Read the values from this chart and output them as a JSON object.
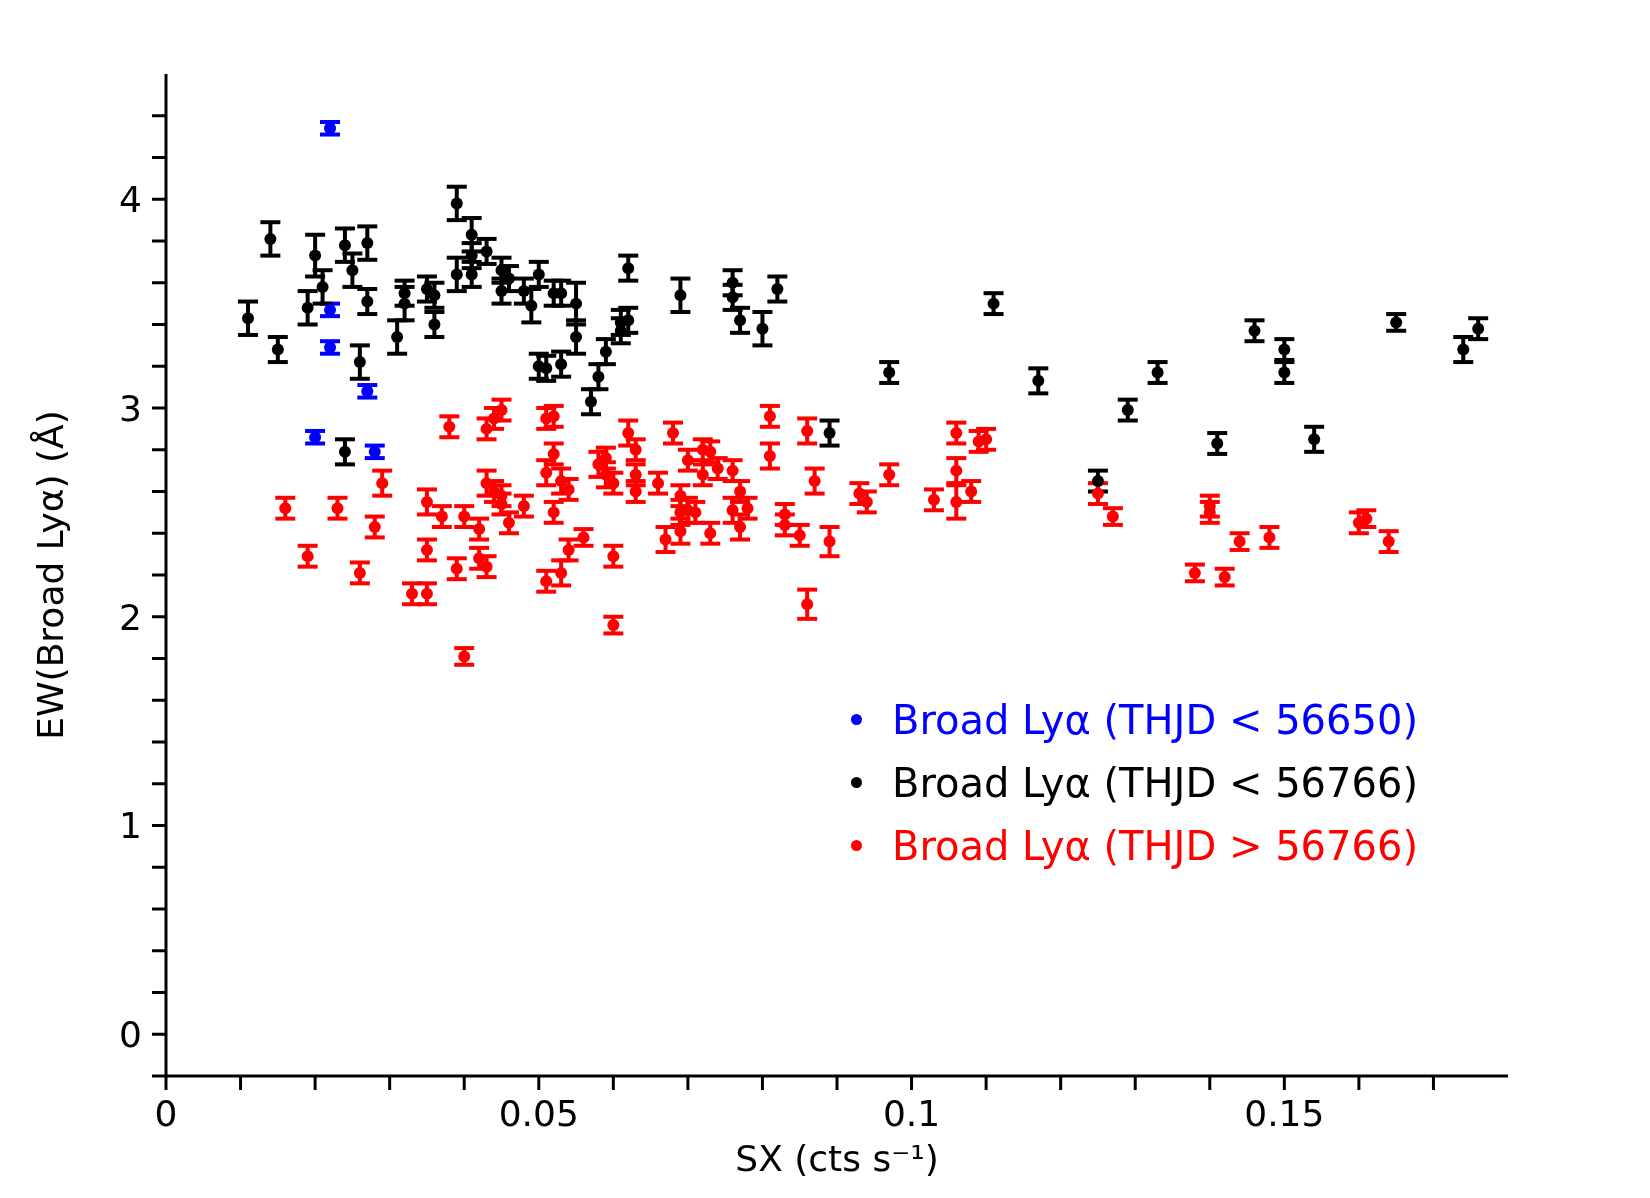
{
  "chart_data": {
    "type": "scatter",
    "xlabel": "SX (cts s⁻¹)",
    "ylabel": "EW(Broad Lyα) (Å)",
    "xlim": [
      0,
      0.18
    ],
    "ylim": [
      -0.2,
      4.6
    ],
    "xticks": [
      0,
      {
        "value": 0.01,
        "label": null
      },
      {
        "value": 0.02,
        "label": null
      },
      {
        "value": 0.03,
        "label": null
      },
      {
        "value": 0.04,
        "label": null
      },
      {
        "value": 0.05,
        "label": "0.05"
      },
      {
        "value": 0.06,
        "label": null
      },
      {
        "value": 0.07,
        "label": null
      },
      {
        "value": 0.08,
        "label": null
      },
      {
        "value": 0.09,
        "label": null
      },
      {
        "value": 0.1,
        "label": "0.1"
      },
      {
        "value": 0.11,
        "label": null
      },
      {
        "value": 0.12,
        "label": null
      },
      {
        "value": 0.13,
        "label": null
      },
      {
        "value": 0.14,
        "label": null
      },
      {
        "value": 0.15,
        "label": "0.15"
      },
      {
        "value": 0.16,
        "label": null
      },
      {
        "value": 0.17,
        "label": null
      }
    ],
    "yticks": [
      {
        "value": -0.2,
        "label": null
      },
      0,
      {
        "value": 0.2,
        "label": null
      },
      {
        "value": 0.4,
        "label": null
      },
      {
        "value": 0.6,
        "label": null
      },
      {
        "value": 0.8,
        "label": null
      },
      1,
      {
        "value": 1.2,
        "label": null
      },
      {
        "value": 1.4,
        "label": null
      },
      {
        "value": 1.6,
        "label": null
      },
      {
        "value": 1.8,
        "label": null
      },
      2,
      {
        "value": 2.2,
        "label": null
      },
      {
        "value": 2.4,
        "label": null
      },
      {
        "value": 2.6,
        "label": null
      },
      {
        "value": 2.8,
        "label": null
      },
      3,
      {
        "value": 3.2,
        "label": null
      },
      {
        "value": 3.4,
        "label": null
      },
      {
        "value": 3.6,
        "label": null
      },
      {
        "value": 3.8,
        "label": null
      },
      4,
      {
        "value": 4.2,
        "label": null
      },
      {
        "value": 4.4,
        "label": null
      }
    ],
    "marker": "circle",
    "legend": "bottom right",
    "series": [
      {
        "name": "Broad Lyα (THJD < 56650)",
        "color": "#0000ff",
        "x": [
          0.022,
          0.022,
          0.022,
          0.027,
          0.02,
          0.028
        ],
        "values": [
          4.34,
          3.47,
          3.29,
          3.08,
          2.86,
          2.79
        ],
        "errors": [
          0.03,
          0.03,
          0.03,
          0.03,
          0.03,
          0.03
        ]
      },
      {
        "name": "Broad Lyα (THJD < 56766)",
        "color": "#000000",
        "x": [
          0.011,
          0.014,
          0.015,
          0.019,
          0.02,
          0.021,
          0.024,
          0.025,
          0.026,
          0.027,
          0.027,
          0.024,
          0.031,
          0.032,
          0.032,
          0.035,
          0.036,
          0.036,
          0.039,
          0.039,
          0.041,
          0.041,
          0.041,
          0.043,
          0.045,
          0.045,
          0.046,
          0.048,
          0.049,
          0.05,
          0.05,
          0.051,
          0.052,
          0.053,
          0.053,
          0.055,
          0.055,
          0.057,
          0.058,
          0.059,
          0.061,
          0.061,
          0.062,
          0.062,
          0.069,
          0.076,
          0.076,
          0.077,
          0.08,
          0.082,
          0.089,
          0.097,
          0.111,
          0.117,
          0.125,
          0.129,
          0.133,
          0.141,
          0.146,
          0.15,
          0.15,
          0.154,
          0.165,
          0.174,
          0.176
        ],
        "values": [
          3.43,
          3.81,
          3.28,
          3.48,
          3.73,
          3.58,
          3.78,
          3.66,
          3.22,
          3.79,
          3.51,
          2.79,
          3.34,
          3.5,
          3.55,
          3.57,
          3.54,
          3.4,
          3.64,
          3.98,
          3.83,
          3.73,
          3.64,
          3.75,
          3.66,
          3.56,
          3.62,
          3.56,
          3.49,
          3.64,
          3.2,
          3.19,
          3.55,
          3.55,
          3.21,
          3.5,
          3.34,
          3.03,
          3.15,
          3.27,
          3.37,
          3.41,
          3.42,
          3.67,
          3.54,
          3.6,
          3.53,
          3.42,
          3.38,
          3.57,
          2.88,
          3.17,
          3.5,
          3.13,
          2.65,
          2.99,
          3.17,
          2.83,
          3.37,
          3.28,
          3.17,
          2.85,
          3.41,
          3.28,
          3.38
        ],
        "errors": [
          0.08,
          0.08,
          0.06,
          0.08,
          0.1,
          0.08,
          0.08,
          0.08,
          0.08,
          0.08,
          0.06,
          0.06,
          0.08,
          0.08,
          0.06,
          0.06,
          0.06,
          0.06,
          0.08,
          0.08,
          0.08,
          0.06,
          0.06,
          0.06,
          0.06,
          0.06,
          0.06,
          0.06,
          0.08,
          0.06,
          0.06,
          0.06,
          0.06,
          0.06,
          0.06,
          0.1,
          0.08,
          0.06,
          0.06,
          0.06,
          0.06,
          0.06,
          0.06,
          0.06,
          0.08,
          0.06,
          0.06,
          0.06,
          0.08,
          0.06,
          0.06,
          0.05,
          0.05,
          0.06,
          0.05,
          0.05,
          0.05,
          0.05,
          0.05,
          0.05,
          0.05,
          0.06,
          0.04,
          0.06,
          0.05
        ]
      },
      {
        "name": "Broad Lyα (THJD > 56766)",
        "color": "#ff0000",
        "x": [
          0.016,
          0.019,
          0.023,
          0.026,
          0.028,
          0.029,
          0.033,
          0.035,
          0.035,
          0.035,
          0.037,
          0.038,
          0.039,
          0.04,
          0.04,
          0.042,
          0.042,
          0.043,
          0.043,
          0.044,
          0.045,
          0.043,
          0.044,
          0.045,
          0.045,
          0.046,
          0.048,
          0.051,
          0.051,
          0.052,
          0.051,
          0.052,
          0.052,
          0.053,
          0.053,
          0.054,
          0.054,
          0.056,
          0.058,
          0.059,
          0.059,
          0.06,
          0.06,
          0.06,
          0.062,
          0.063,
          0.063,
          0.063,
          0.066,
          0.067,
          0.068,
          0.069,
          0.069,
          0.069,
          0.07,
          0.07,
          0.071,
          0.072,
          0.073,
          0.072,
          0.073,
          0.074,
          0.076,
          0.076,
          0.077,
          0.077,
          0.078,
          0.081,
          0.081,
          0.083,
          0.083,
          0.085,
          0.086,
          0.086,
          0.087,
          0.089,
          0.093,
          0.094,
          0.097,
          0.103,
          0.106,
          0.106,
          0.106,
          0.108,
          0.109,
          0.11,
          0.125,
          0.127,
          0.138,
          0.14,
          0.14,
          0.142,
          0.144,
          0.148,
          0.16,
          0.161,
          0.164
        ],
        "values": [
          2.52,
          2.29,
          2.52,
          2.21,
          2.43,
          2.64,
          2.11,
          2.11,
          2.55,
          2.32,
          2.48,
          2.91,
          2.23,
          2.48,
          1.81,
          2.42,
          2.28,
          2.24,
          2.9,
          2.95,
          2.99,
          2.64,
          2.6,
          2.58,
          2.54,
          2.45,
          2.53,
          2.17,
          2.95,
          2.96,
          2.69,
          2.78,
          2.5,
          2.65,
          2.21,
          2.61,
          2.32,
          2.38,
          2.73,
          2.76,
          2.68,
          2.64,
          2.29,
          1.96,
          2.88,
          2.8,
          2.68,
          2.6,
          2.64,
          2.37,
          2.88,
          2.58,
          2.5,
          2.41,
          2.75,
          2.51,
          2.5,
          2.8,
          2.79,
          2.68,
          2.4,
          2.71,
          2.7,
          2.51,
          2.6,
          2.43,
          2.52,
          2.96,
          2.77,
          2.49,
          2.44,
          2.39,
          2.89,
          2.06,
          2.65,
          2.36,
          2.59,
          2.55,
          2.68,
          2.56,
          2.88,
          2.7,
          2.55,
          2.6,
          2.84,
          2.85,
          2.59,
          2.48,
          2.21,
          2.53,
          2.5,
          2.19,
          2.36,
          2.38,
          2.45,
          2.47,
          2.36
        ],
        "errors": [
          0.05,
          0.05,
          0.05,
          0.05,
          0.05,
          0.06,
          0.05,
          0.05,
          0.06,
          0.05,
          0.05,
          0.05,
          0.05,
          0.05,
          0.04,
          0.05,
          0.05,
          0.05,
          0.05,
          0.05,
          0.05,
          0.06,
          0.05,
          0.05,
          0.05,
          0.05,
          0.05,
          0.05,
          0.05,
          0.05,
          0.06,
          0.05,
          0.05,
          0.06,
          0.06,
          0.05,
          0.05,
          0.04,
          0.06,
          0.05,
          0.06,
          0.05,
          0.05,
          0.04,
          0.06,
          0.05,
          0.05,
          0.05,
          0.05,
          0.06,
          0.05,
          0.05,
          0.06,
          0.06,
          0.05,
          0.06,
          0.05,
          0.05,
          0.05,
          0.05,
          0.05,
          0.05,
          0.05,
          0.06,
          0.05,
          0.06,
          0.05,
          0.05,
          0.06,
          0.05,
          0.05,
          0.05,
          0.06,
          0.07,
          0.06,
          0.07,
          0.05,
          0.05,
          0.05,
          0.05,
          0.05,
          0.06,
          0.08,
          0.05,
          0.05,
          0.05,
          0.05,
          0.04,
          0.04,
          0.05,
          0.05,
          0.04,
          0.04,
          0.05,
          0.05,
          0.04,
          0.05
        ]
      }
    ]
  }
}
